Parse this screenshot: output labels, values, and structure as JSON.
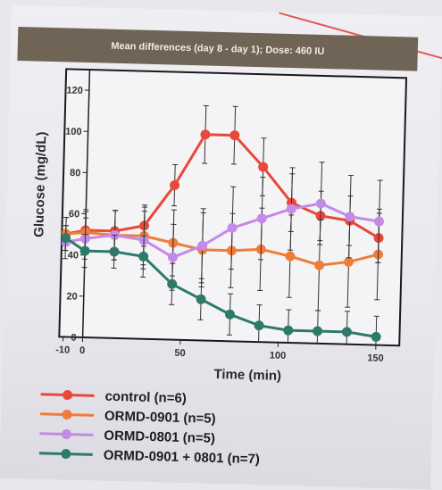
{
  "chart_data": {
    "type": "line",
    "title": "Mean differences (day 8 - day 1); Dose: 460 IU",
    "xlabel": "Time (min)",
    "ylabel": "Glucose (mg/dL)",
    "xlim": [
      -12,
      162
    ],
    "ylim": [
      0,
      130
    ],
    "xticks": [
      -10,
      0,
      50,
      100,
      150
    ],
    "yticks": [
      0,
      20,
      40,
      60,
      80,
      100,
      120
    ],
    "legend_position": "bottom",
    "series": [
      {
        "name": "control (n=6)",
        "color": "#e8483a",
        "x": [
          -10,
          0,
          15,
          30,
          45,
          60,
          75,
          90,
          105,
          120,
          135,
          150
        ],
        "y": [
          50,
          52,
          52,
          55,
          75,
          100,
          100,
          85,
          68,
          62,
          60,
          52
        ],
        "err": [
          8,
          10,
          10,
          10,
          10,
          14,
          14,
          14,
          14,
          12,
          12,
          12
        ]
      },
      {
        "name": "ORMD-0901 (n=5)",
        "color": "#ef7d3a",
        "x": [
          -10,
          0,
          15,
          30,
          45,
          60,
          75,
          90,
          105,
          120,
          135,
          150
        ],
        "y": [
          50,
          51,
          50,
          50,
          47,
          44,
          44,
          45,
          42,
          38,
          40,
          44
        ],
        "err": [
          8,
          10,
          12,
          14,
          16,
          18,
          18,
          20,
          20,
          22,
          22,
          22
        ]
      },
      {
        "name": "ORMD-0801 (n=5)",
        "color": "#c48ae8",
        "x": [
          -10,
          0,
          15,
          30,
          45,
          60,
          75,
          90,
          105,
          120,
          135,
          150
        ],
        "y": [
          46,
          48,
          50,
          48,
          40,
          46,
          55,
          60,
          65,
          68,
          62,
          60
        ],
        "err": [
          8,
          10,
          12,
          14,
          16,
          18,
          20,
          20,
          20,
          20,
          20,
          20
        ]
      },
      {
        "name": "ORMD-0901 + 0801 (n=7)",
        "color": "#2e7a6a",
        "x": [
          -10,
          0,
          15,
          30,
          45,
          60,
          75,
          90,
          105,
          120,
          135,
          150
        ],
        "y": [
          48,
          42,
          42,
          40,
          27,
          20,
          13,
          8,
          6,
          6,
          6,
          4
        ],
        "err": [
          6,
          8,
          8,
          10,
          10,
          10,
          10,
          10,
          10,
          10,
          10,
          10
        ]
      }
    ]
  }
}
